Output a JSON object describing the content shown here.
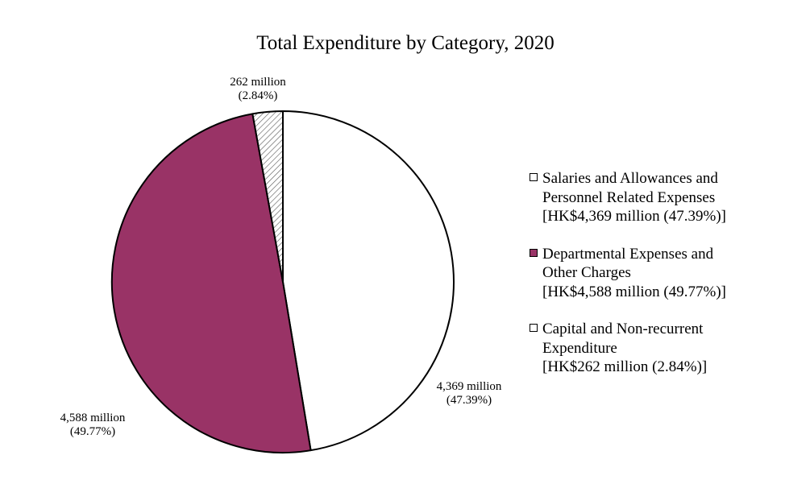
{
  "chart_data": {
    "type": "pie",
    "title": "Total Expenditure by Category, 2020",
    "start_angle_deg": 0,
    "direction": "clockwise",
    "slices": [
      {
        "category": "Salaries and Allowances and Personnel Related Expenses",
        "value": 4369,
        "percent": 47.39,
        "label_value": "4,369 million",
        "label_percent": "(47.39%)",
        "legend_amount": "[HK$4,369 million (47.39%)]",
        "fill": "#ffffff",
        "pattern": "none"
      },
      {
        "category": "Departmental Expenses and Other Charges",
        "value": 4588,
        "percent": 49.77,
        "label_value": "4,588 million",
        "label_percent": "(49.77%)",
        "legend_amount": "[HK$4,588 million (49.77%)]",
        "fill": "#993366",
        "pattern": "none"
      },
      {
        "category": "Capital and Non-recurrent Expenditure",
        "value": 262,
        "percent": 2.84,
        "label_value": "262 million",
        "label_percent": "(2.84%)",
        "legend_amount": "[HK$262 million (2.84%)]",
        "fill": "#ffffff",
        "pattern": "diagonal-hatch"
      }
    ],
    "legend_position": "right",
    "unit": "HK$ million"
  },
  "legend": {
    "items": [
      {
        "line1": "Salaries and Allowances and",
        "line2": "Personnel Related Expenses",
        "amount": "[HK$4,369 million (47.39%)]"
      },
      {
        "line1": "Departmental Expenses and",
        "line2": "Other Charges",
        "amount": "[HK$4,588 million (49.77%)]"
      },
      {
        "line1": "Capital and Non-recurrent",
        "line2": "Expenditure",
        "amount": "[HK$262 million (2.84%)]"
      }
    ]
  }
}
